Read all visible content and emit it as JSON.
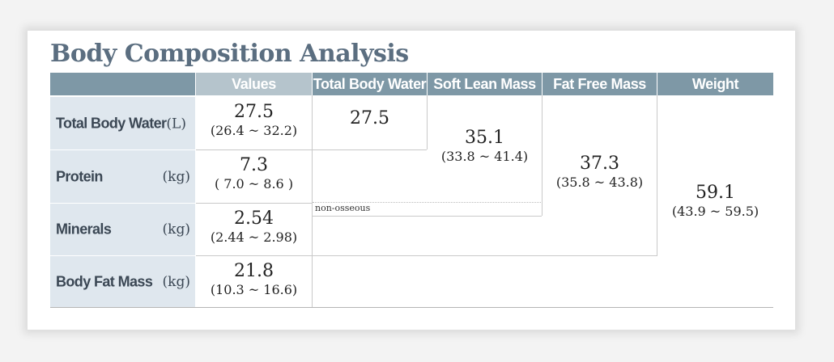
{
  "title": "Body Composition Analysis",
  "headers": {
    "values": "Values",
    "total_body_water": "Total Body Water",
    "soft_lean_mass": "Soft Lean Mass",
    "fat_free_mass": "Fat Free Mass",
    "weight": "Weight"
  },
  "rows": {
    "total_body_water": {
      "label": "Total Body Water",
      "unit": "(L)",
      "value": "27.5",
      "range": "(26.4 ~ 32.2)"
    },
    "protein": {
      "label": "Protein",
      "unit": "(kg)",
      "value": "7.3",
      "range": "( 7.0 ~ 8.6 )"
    },
    "minerals": {
      "label": "Minerals",
      "unit": "(kg)",
      "value": "2.54",
      "range": "(2.44 ~ 2.98)"
    },
    "body_fat_mass": {
      "label": "Body Fat Mass",
      "unit": "(kg)",
      "value": "21.8",
      "range": "(10.3 ~ 16.6)"
    }
  },
  "cells": {
    "total_body_water": {
      "value": "27.5"
    },
    "soft_lean_mass": {
      "value": "35.1",
      "range": "(33.8 ~ 41.4)"
    },
    "fat_free_mass": {
      "value": "37.3",
      "range": "(35.8 ~ 43.8)"
    },
    "weight": {
      "value": "59.1",
      "range": "(43.9 ~ 59.5)"
    }
  },
  "note": "non-osseous",
  "colors": {
    "title": "#5b6e80",
    "header_dark": "#7e98a6",
    "header_light": "#b5c4cc",
    "row_label_bg": "#dfe7ee"
  }
}
